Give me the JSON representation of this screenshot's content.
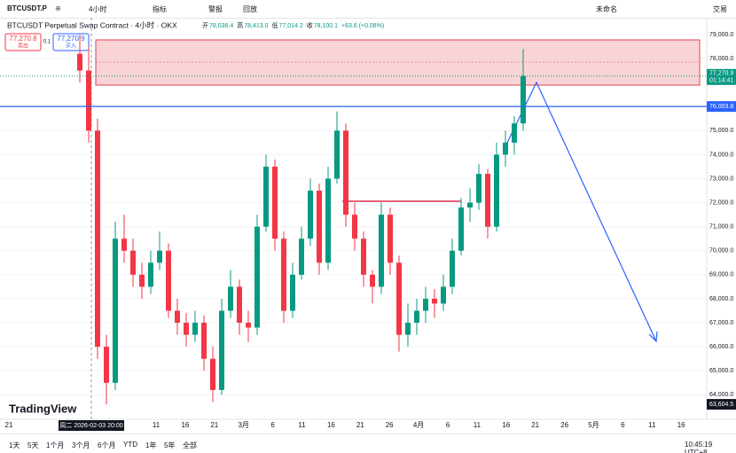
{
  "toolbar": {
    "symbol": "BTCUSDT.P",
    "interval": "4小时",
    "indicators": "指标",
    "alert": "警报",
    "replay": "回放",
    "layout_name": "未命名",
    "trade": "交易"
  },
  "legend": {
    "title": "BTCUSDT Perpetual Swap Contract · 4小时 · OKX",
    "ohlc": [
      {
        "label": "开",
        "value": "78,036.4"
      },
      {
        "label": "高",
        "value": "78,413.0"
      },
      {
        "label": "低",
        "value": "77,014.2"
      },
      {
        "label": "收",
        "value": "78,100.1"
      }
    ],
    "change": "+63.6 (+0.08%)"
  },
  "order": {
    "sell_price": "77,270.8",
    "sell": "卖出",
    "qty": "0.1",
    "buy_price": "77,270.9",
    "buy": "买入"
  },
  "chart_data": {
    "type": "candlestick",
    "open": [
      78200,
      77500,
      75000,
      66000,
      64500,
      70500,
      70000,
      69000,
      68500,
      69500,
      70000,
      67500,
      67000,
      66500,
      67000,
      65500,
      64200,
      67500,
      68500,
      67000,
      66800,
      71000,
      73500,
      70500,
      67500,
      69000,
      70500,
      72500,
      69500,
      73000,
      75000,
      71500,
      70500,
      69000,
      68500,
      71500,
      69500,
      66500,
      67000,
      67500,
      68000,
      67800,
      68500,
      70000,
      71800,
      72000,
      73200,
      71000,
      74000,
      74500,
      75300
    ],
    "high": [
      79000,
      78500,
      75500,
      66500,
      71200,
      71500,
      70500,
      69500,
      70000,
      70800,
      70300,
      68000,
      67400,
      67500,
      67300,
      66000,
      68000,
      69200,
      68800,
      67500,
      71500,
      74000,
      73800,
      70800,
      69500,
      71000,
      73000,
      72800,
      73500,
      75800,
      75300,
      72000,
      70800,
      69200,
      72000,
      71800,
      69800,
      67800,
      68000,
      68500,
      68400,
      69000,
      70500,
      72200,
      72600,
      73600,
      73400,
      74500,
      75000,
      75600,
      78400
    ],
    "low": [
      77000,
      74500,
      65500,
      63600,
      64200,
      69500,
      68500,
      68000,
      68200,
      69200,
      67200,
      66500,
      66000,
      66200,
      65000,
      63700,
      64000,
      67200,
      66500,
      66200,
      66500,
      70800,
      70000,
      67000,
      67200,
      68800,
      70200,
      69000,
      69200,
      72800,
      71000,
      70000,
      68500,
      67800,
      68200,
      69000,
      65800,
      66000,
      66500,
      67000,
      67200,
      67500,
      68200,
      69800,
      71200,
      71700,
      70500,
      70800,
      73500,
      74000,
      75000
    ],
    "close": [
      77500,
      75000,
      66000,
      64500,
      70500,
      70000,
      69000,
      68500,
      69500,
      70000,
      67500,
      67000,
      66500,
      67000,
      65500,
      64200,
      67500,
      68500,
      67000,
      66800,
      71000,
      73500,
      70500,
      67500,
      69000,
      70500,
      72500,
      69500,
      73000,
      75000,
      71500,
      70500,
      69000,
      68500,
      71500,
      69500,
      66500,
      67000,
      67500,
      68000,
      67800,
      68500,
      70000,
      71800,
      72000,
      73200,
      71000,
      74000,
      74500,
      75300,
      77270.9
    ],
    "up_color": "#089981",
    "down_color": "#f23645",
    "ylim": [
      62500,
      79700
    ],
    "yticks": [
      {
        "value": 79000,
        "label": "79,000.0"
      },
      {
        "value": 78000,
        "label": "78,000.0"
      },
      {
        "value": 75000,
        "label": "75,000.0"
      },
      {
        "value": 74000,
        "label": "74,000.0"
      },
      {
        "value": 73000,
        "label": "73,000.0"
      },
      {
        "value": 72000,
        "label": "72,000.0"
      },
      {
        "value": 71000,
        "label": "71,000.0"
      },
      {
        "value": 70000,
        "label": "70,000.0"
      },
      {
        "value": 69000,
        "label": "69,000.0"
      },
      {
        "value": 68000,
        "label": "68,000.0"
      },
      {
        "value": 67000,
        "label": "67,000.0"
      },
      {
        "value": 66000,
        "label": "66,000.0"
      },
      {
        "value": 65000,
        "label": "65,000.0"
      },
      {
        "value": 64000,
        "label": "64,000.0"
      }
    ],
    "grid": true,
    "last_price": {
      "value": 77270.9,
      "label": "77,270.9",
      "countdown": "01:14:41"
    },
    "level": {
      "value": 76003.8,
      "label": "76,003.8"
    },
    "low_marker": {
      "value": 63604.5,
      "label": "63,604.5"
    },
    "crosshair_label": "周二 2026-02-03 20:00",
    "first_xlabel": "21",
    "xlabels": [
      "11",
      "16",
      "21",
      "3月",
      "6",
      "11",
      "16",
      "21",
      "26",
      "4月",
      "6",
      "11",
      "16",
      "21",
      "26",
      "5月",
      "6",
      "11",
      "16"
    ],
    "watermark": "TradingView"
  },
  "bottom_bar": {
    "ranges": [
      "1天",
      "5天",
      "1个月",
      "3个月",
      "6个月",
      "YTD",
      "1年",
      "5年",
      "全部"
    ],
    "time": "10:45:19 UTC+8"
  }
}
